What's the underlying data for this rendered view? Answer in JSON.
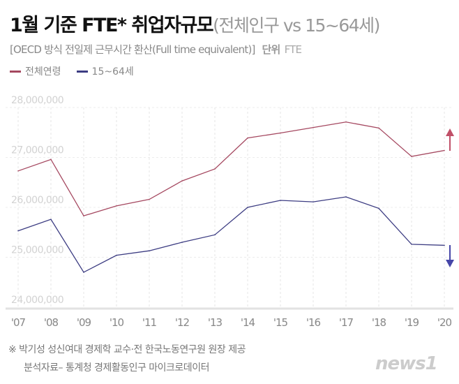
{
  "header": {
    "title": "1월 기준 FTE* 취업자규모",
    "title_sub": "(전체인구 vs 15~64세)",
    "subtitle": "[OECD 방식 전일제 근무시간 환산(Full time equivalent)]",
    "unit_label": "단위",
    "unit_value": "FTE"
  },
  "footer": {
    "line1": "※ 박기성 성신여대 경제학 교수·전 한국노동연구원 원장 제공",
    "line2": "분석자료– 통계청 경제활동인구 마이크로데이터",
    "logo": "news1"
  },
  "chart_data": {
    "type": "line",
    "categories": [
      "'07",
      "'08",
      "'09",
      "'10",
      "'11",
      "'12",
      "'13",
      "'14",
      "'15",
      "'16",
      "'17",
      "'18",
      "'19",
      "'20"
    ],
    "yticks": [
      "24,000,000",
      "25,000,000",
      "26,000,000",
      "27,000,000",
      "28,000,000"
    ],
    "ylim": [
      24000000,
      28000000
    ],
    "grid": true,
    "legend_position": "top-left",
    "series": [
      {
        "name": "전체연령",
        "color": "#a54860",
        "arrow": "up",
        "arrow_color": "#c05068",
        "values": [
          26730000,
          26960000,
          25830000,
          26030000,
          26160000,
          26530000,
          26770000,
          27390000,
          27490000,
          27600000,
          27710000,
          27590000,
          27020000,
          27140000
        ]
      },
      {
        "name": "15~64세",
        "color": "#3c3c82",
        "arrow": "down",
        "arrow_color": "#4646a8",
        "values": [
          25530000,
          25760000,
          24700000,
          25040000,
          25130000,
          25300000,
          25450000,
          26000000,
          26140000,
          26110000,
          26210000,
          25980000,
          25260000,
          25240000
        ]
      }
    ]
  }
}
